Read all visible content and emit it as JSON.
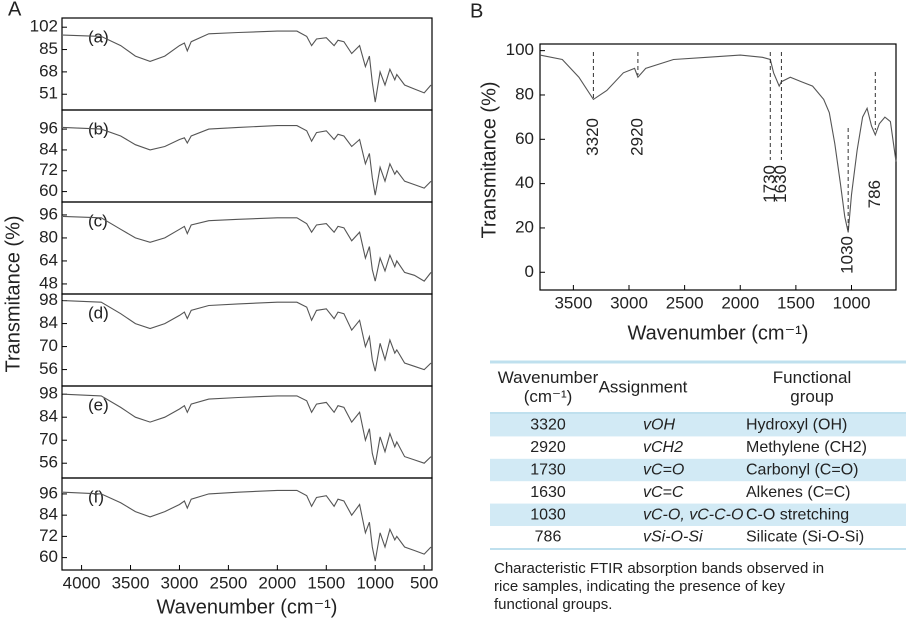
{
  "panel_labels": [
    "A",
    "B"
  ],
  "chart_data": [
    {
      "type": "line",
      "annotation": "(a)",
      "ylabel": "Transmitance (%)",
      "color": "#555555",
      "ylim": [
        39,
        109
      ],
      "yticks": [
        102,
        85,
        68,
        51
      ],
      "xlim": [
        4200,
        420
      ],
      "x": [
        4190,
        3800,
        3600,
        3450,
        3300,
        3150,
        3000,
        2950,
        2920,
        2880,
        2700,
        2400,
        2000,
        1800,
        1700,
        1650,
        1600,
        1500,
        1420,
        1380,
        1320,
        1240,
        1160,
        1100,
        1060,
        1030,
        1000,
        950,
        900,
        850,
        800,
        780,
        700,
        600,
        500,
        430
      ],
      "values": [
        96,
        95,
        88,
        80,
        76,
        80,
        88,
        90,
        84,
        91,
        97,
        98,
        99,
        99,
        95,
        88,
        93,
        94,
        88,
        92,
        91,
        82,
        88,
        72,
        80,
        60,
        45,
        68,
        58,
        70,
        62,
        66,
        58,
        55,
        52,
        58
      ]
    },
    {
      "type": "line",
      "annotation": "(b)",
      "color": "#555555",
      "ylim": [
        54,
        107
      ],
      "yticks": [
        96,
        84,
        72,
        60
      ],
      "xlim": [
        4200,
        420
      ],
      "x": [
        4190,
        3800,
        3600,
        3450,
        3300,
        3150,
        3000,
        2950,
        2920,
        2880,
        2700,
        2400,
        2000,
        1800,
        1700,
        1650,
        1600,
        1500,
        1420,
        1380,
        1320,
        1240,
        1160,
        1100,
        1060,
        1030,
        1000,
        950,
        900,
        850,
        800,
        780,
        700,
        600,
        500,
        430
      ],
      "values": [
        97,
        96,
        92,
        87,
        84,
        86,
        90,
        91,
        88,
        92,
        96,
        97,
        98,
        98,
        95,
        89,
        94,
        95,
        90,
        93,
        92,
        86,
        90,
        76,
        82,
        68,
        58,
        74,
        66,
        76,
        70,
        72,
        66,
        64,
        62,
        66
      ]
    },
    {
      "type": "line",
      "annotation": "(c)",
      "color": "#555555",
      "ylim": [
        41,
        105
      ],
      "yticks": [
        96,
        80,
        64,
        48
      ],
      "xlim": [
        4200,
        420
      ],
      "x": [
        4190,
        3800,
        3600,
        3450,
        3300,
        3150,
        3000,
        2950,
        2920,
        2880,
        2700,
        2400,
        2000,
        1800,
        1700,
        1650,
        1600,
        1500,
        1420,
        1380,
        1320,
        1240,
        1160,
        1100,
        1060,
        1030,
        1000,
        950,
        900,
        850,
        800,
        780,
        700,
        600,
        500,
        430
      ],
      "values": [
        95,
        94,
        86,
        80,
        77,
        80,
        86,
        88,
        83,
        89,
        92,
        93,
        94,
        94,
        90,
        84,
        89,
        90,
        84,
        88,
        87,
        78,
        84,
        66,
        74,
        58,
        50,
        66,
        57,
        68,
        60,
        64,
        56,
        54,
        50,
        56
      ]
    },
    {
      "type": "line",
      "annotation": "(d)",
      "color": "#555555",
      "ylim": [
        46,
        102
      ],
      "yticks": [
        98,
        84,
        70,
        56
      ],
      "xlim": [
        4200,
        420
      ],
      "x": [
        4190,
        3800,
        3600,
        3450,
        3300,
        3150,
        3000,
        2950,
        2920,
        2880,
        2700,
        2400,
        2000,
        1800,
        1700,
        1650,
        1600,
        1500,
        1420,
        1380,
        1320,
        1240,
        1160,
        1100,
        1060,
        1030,
        1000,
        950,
        900,
        850,
        800,
        780,
        700,
        600,
        500,
        430
      ],
      "values": [
        98,
        97,
        90,
        84,
        81,
        84,
        89,
        91,
        87,
        92,
        95,
        96,
        97,
        97,
        94,
        86,
        92,
        93,
        87,
        91,
        90,
        80,
        86,
        70,
        76,
        62,
        55,
        72,
        62,
        74,
        66,
        68,
        60,
        58,
        56,
        60
      ]
    },
    {
      "type": "line",
      "annotation": "(e)",
      "color": "#555555",
      "ylim": [
        47,
        103
      ],
      "yticks": [
        98,
        84,
        70,
        56
      ],
      "xlim": [
        4200,
        420
      ],
      "x": [
        4190,
        3800,
        3600,
        3450,
        3300,
        3150,
        3000,
        2950,
        2920,
        2880,
        2700,
        2400,
        2000,
        1800,
        1700,
        1650,
        1600,
        1500,
        1420,
        1380,
        1320,
        1240,
        1160,
        1100,
        1060,
        1030,
        1000,
        950,
        900,
        850,
        800,
        780,
        700,
        600,
        500,
        430
      ],
      "values": [
        98,
        97,
        90,
        84,
        81,
        84,
        89,
        91,
        87,
        92,
        95,
        96,
        97,
        97,
        94,
        87,
        92,
        93,
        87,
        91,
        90,
        81,
        87,
        70,
        77,
        62,
        55,
        72,
        63,
        74,
        66,
        69,
        60,
        58,
        56,
        60
      ]
    },
    {
      "type": "line",
      "annotation": "(f)",
      "color": "#555555",
      "xlabel": "Wavenumber (cm⁻¹)",
      "ylim": [
        53,
        105
      ],
      "yticks": [
        96,
        84,
        72,
        60
      ],
      "xlim": [
        4200,
        420
      ],
      "xticks": [
        4000,
        3500,
        3000,
        2500,
        2000,
        1500,
        1000,
        500
      ],
      "x": [
        4190,
        3800,
        3600,
        3450,
        3300,
        3150,
        3000,
        2950,
        2920,
        2880,
        2700,
        2400,
        2000,
        1800,
        1700,
        1650,
        1600,
        1500,
        1420,
        1380,
        1320,
        1240,
        1160,
        1100,
        1060,
        1030,
        1000,
        950,
        900,
        850,
        800,
        780,
        700,
        600,
        500,
        430
      ],
      "values": [
        97,
        96,
        91,
        86,
        83,
        86,
        90,
        92,
        88,
        93,
        96,
        97,
        98,
        98,
        95,
        89,
        94,
        95,
        89,
        93,
        92,
        84,
        90,
        74,
        80,
        66,
        58,
        74,
        66,
        76,
        70,
        72,
        66,
        64,
        62,
        66
      ]
    },
    {
      "type": "line",
      "xlabel": "Wavenumber (cm⁻¹)",
      "ylabel": "Transmitance (%)",
      "color": "#555555",
      "xlim": [
        3800,
        600
      ],
      "xticks": [
        3500,
        3000,
        2500,
        2000,
        1500,
        1000
      ],
      "ylim": [
        -8,
        103
      ],
      "yticks": [
        0,
        20,
        40,
        60,
        80,
        100
      ],
      "peaks": [
        3320,
        2920,
        1730,
        1630,
        1030,
        786
      ],
      "x": [
        3800,
        3600,
        3450,
        3320,
        3200,
        3050,
        2950,
        2920,
        2850,
        2600,
        2300,
        2000,
        1800,
        1730,
        1700,
        1650,
        1630,
        1550,
        1450,
        1350,
        1250,
        1200,
        1150,
        1100,
        1060,
        1030,
        1000,
        950,
        900,
        860,
        820,
        786,
        750,
        700,
        650,
        600
      ],
      "values": [
        98,
        96,
        88,
        78,
        82,
        90,
        92,
        88,
        92,
        96,
        97,
        98,
        97,
        96,
        90,
        84,
        86,
        88,
        86,
        84,
        78,
        72,
        58,
        40,
        25,
        18,
        35,
        55,
        70,
        74,
        66,
        62,
        67,
        70,
        68,
        50
      ]
    }
  ],
  "table": {
    "header": [
      [
        "Wavenumber",
        "(cm⁻¹)"
      ],
      [
        "Assignment"
      ],
      [
        "Functional",
        "group"
      ]
    ],
    "rows": [
      [
        "3320",
        "vOH",
        "Hydroxyl (OH)"
      ],
      [
        "2920",
        "vCH2",
        "Methylene (CH2)"
      ],
      [
        "1730",
        "vC=O",
        "Carbonyl (C=O)"
      ],
      [
        "1630",
        "vC=C",
        "Alkenes (C=C)"
      ],
      [
        "1030",
        "vC-O, vC-C-O",
        "C-O stretching"
      ],
      [
        "786",
        "vSi-O-Si",
        "Silicate (Si-O-Si)"
      ]
    ]
  },
  "caption": [
    "Characteristic FTIR absorption bands observed in",
    "rice samples, indicating the presence of key",
    "functional groups."
  ]
}
